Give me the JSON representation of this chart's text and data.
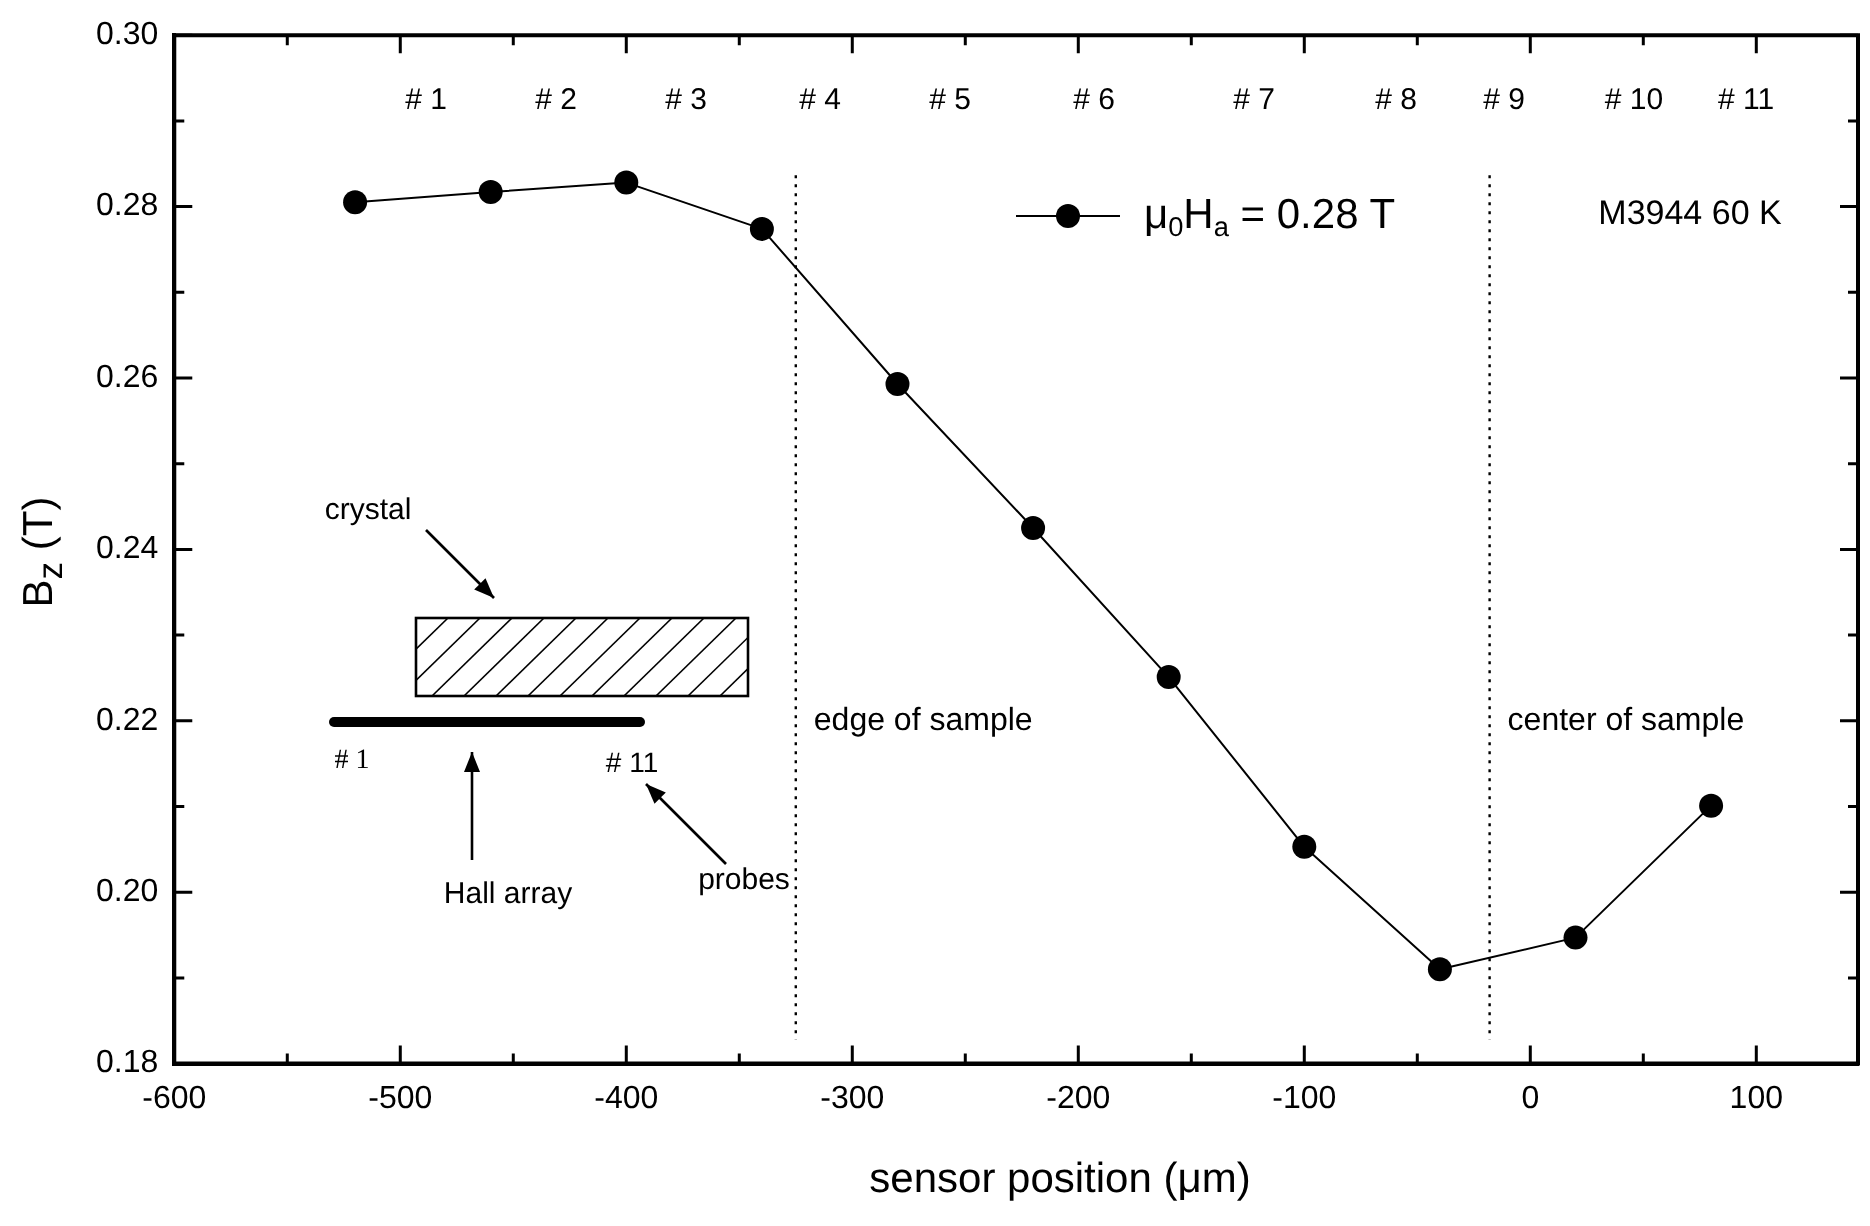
{
  "chart_data": {
    "type": "line",
    "xlabel": "sensor position (μm)",
    "ylabel": "B$_{z}$ (T)",
    "x": [
      -520,
      -460,
      -400,
      -340,
      -280,
      -220,
      -160,
      -100,
      -40,
      20,
      80
    ],
    "series": [
      {
        "name": "μ$_{0}$H$_{a}$ = 0.28 T",
        "color": "#000000",
        "values": [
          0.2805,
          0.2817,
          0.2828,
          0.2774,
          0.2593,
          0.2425,
          0.2251,
          0.2053,
          0.191,
          0.1947,
          0.2101
        ]
      }
    ],
    "xlim": [
      -600,
      145
    ],
    "xticks": [
      -600,
      {
        "value": -550,
        "label": null
      },
      -500,
      {
        "value": -450,
        "label": null
      },
      -400,
      {
        "value": -350,
        "label": null
      },
      -300,
      {
        "value": -250,
        "label": null
      },
      -200,
      {
        "value": -150,
        "label": null
      },
      -100,
      {
        "value": -50,
        "label": null
      },
      0,
      {
        "value": 50,
        "label": null
      },
      100
    ],
    "ylim": [
      0.18,
      0.3
    ],
    "yticks": [
      {
        "value": 0.18,
        "label": "0.18"
      },
      {
        "value": 0.19,
        "label": null
      },
      {
        "value": 0.2,
        "label": "0.20"
      },
      {
        "value": 0.21,
        "label": null
      },
      {
        "value": 0.22,
        "label": "0.22"
      },
      {
        "value": 0.23,
        "label": null
      },
      {
        "value": 0.24,
        "label": "0.24"
      },
      {
        "value": 0.25,
        "label": null
      },
      {
        "value": 0.26,
        "label": "0.26"
      },
      {
        "value": 0.27,
        "label": null
      },
      {
        "value": 0.28,
        "label": "0.28"
      },
      {
        "value": 0.29,
        "label": null
      },
      {
        "value": 0.3,
        "label": "0.30"
      }
    ],
    "marker": "circle",
    "line_style": "solid",
    "grid": false,
    "legend": "top",
    "ref_lines": [
      {
        "axis": "x",
        "value": -325,
        "label": "edge of sample",
        "line_style": "dotted"
      },
      {
        "axis": "x",
        "value": -18,
        "label": "center of sample",
        "line_style": "dotted"
      }
    ],
    "annotations": [
      "# 1",
      "# 2",
      "# 3",
      "# 4",
      "# 5",
      "# 6",
      "# 7",
      "# 8",
      "# 9",
      "# 10",
      "# 11",
      "M3944 60 K",
      "crystal",
      "# 1",
      "# 11",
      "Hall array",
      "probes"
    ]
  }
}
